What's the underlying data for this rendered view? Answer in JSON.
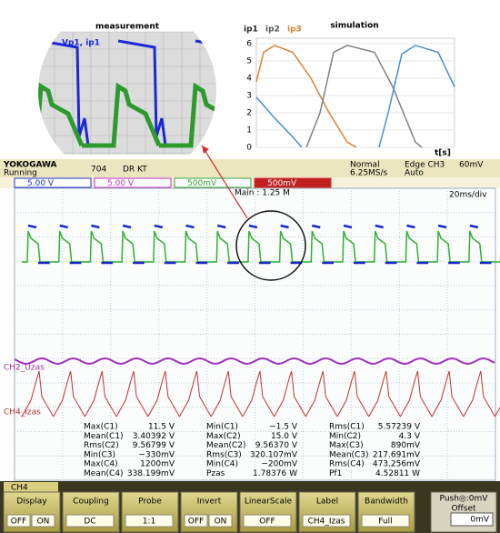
{
  "measurement": {
    "title": "measurement",
    "label": "Vp1, ip1"
  },
  "simulation": {
    "title": "simulation",
    "legend": [
      "ip1",
      "ip2",
      "ip3"
    ],
    "yticks": [
      0,
      1,
      2,
      3,
      4,
      5,
      6
    ],
    "x_label": "t[s]"
  },
  "header": {
    "brand": "YOKOGAWA",
    "status": "Running",
    "record": "704",
    "mode": "DR KT",
    "trigger_mode": "Normal",
    "sample_rate": "6.25MS/s",
    "trigger": "Edge CH3",
    "trigger_level": "60mV",
    "trigger_auto": "Auto"
  },
  "channels": [
    "5.00 V",
    "5.00 V",
    "500mV",
    "500mV"
  ],
  "main": "Main : 1.25 M",
  "timebase": "20ms/div",
  "channel_labels": [
    "CH2_Uzas",
    "CH4_Izas"
  ],
  "measurements": [
    [
      [
        "Max(C1)",
        "11.5 V"
      ],
      [
        "Min(C1)",
        "−1.5 V"
      ],
      [
        "Rms(C1)",
        "5.57239 V"
      ]
    ],
    [
      [
        "Mean(C1)",
        "3.40392 V"
      ],
      [
        "Max(C2)",
        "15.0 V"
      ],
      [
        "Min(C2)",
        "4.3 V"
      ]
    ],
    [
      [
        "Rms(C2)",
        "9.56799 V"
      ],
      [
        "Mean(C2)",
        "9.56370 V"
      ],
      [
        "Max(C3)",
        "890mV"
      ]
    ],
    [
      [
        "Min(C3)",
        "−330mV"
      ],
      [
        "Rms(C3)",
        "320.107mV"
      ],
      [
        "Mean(C3)",
        "217.691mV"
      ]
    ],
    [
      [
        "Max(C4)",
        "1200mV"
      ],
      [
        "Min(C4)",
        "−200mV"
      ],
      [
        "Rms(C4)",
        "473.256mV"
      ]
    ],
    [
      [
        "Mean(C4)",
        "338.199mV"
      ],
      [
        "Pzas",
        "1.78376 W"
      ],
      [
        "Pf1",
        "4.52811 W"
      ]
    ]
  ],
  "menu": {
    "tab": "CH4",
    "items": [
      {
        "label": "Display",
        "options": [
          "OFF",
          "ON"
        ]
      },
      {
        "label": "Coupling",
        "options": [
          "DC"
        ]
      },
      {
        "label": "Probe",
        "options": [
          "1:1"
        ]
      },
      {
        "label": "Invert",
        "options": [
          "OFF",
          "ON"
        ]
      },
      {
        "label": "LinearScale",
        "options": [
          "OFF"
        ]
      },
      {
        "label": "Label",
        "options": [
          "CH4_Izas"
        ]
      },
      {
        "label": "Bandwidth",
        "options": [
          "Full"
        ]
      }
    ],
    "push": "Push◎:0mV",
    "offset": "Offset",
    "offset_value": "0mV"
  }
}
